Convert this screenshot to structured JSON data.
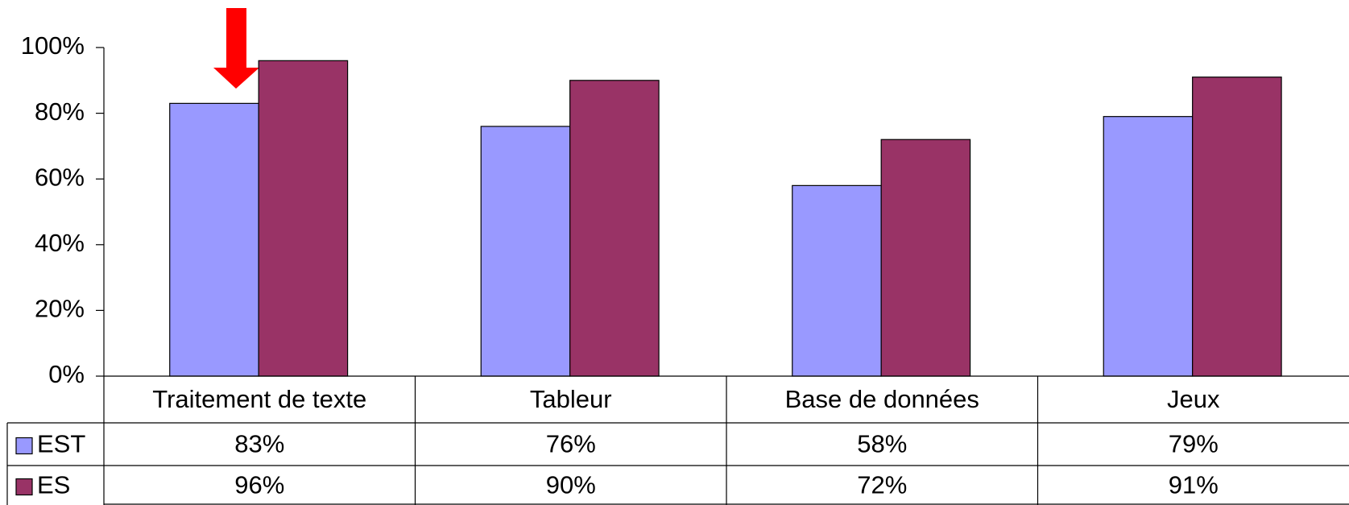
{
  "chart_data": {
    "type": "bar",
    "categories": [
      "Traitement de texte",
      "Tableur",
      "Base de données",
      "Jeux"
    ],
    "series": [
      {
        "name": "EST",
        "color": "#9999ff",
        "values": [
          83,
          76,
          58,
          79
        ],
        "value_labels": [
          "83%",
          "76%",
          "58%",
          "79%"
        ]
      },
      {
        "name": "ES",
        "color": "#993366",
        "values": [
          96,
          90,
          72,
          91
        ],
        "value_labels": [
          "96%",
          "90%",
          "72%",
          "91%"
        ]
      }
    ],
    "ylim": [
      0,
      100
    ],
    "yticks": [
      {
        "value": 0,
        "label": "0%"
      },
      {
        "value": 20,
        "label": "20%"
      },
      {
        "value": 40,
        "label": "40%"
      },
      {
        "value": 60,
        "label": "60%"
      },
      {
        "value": 80,
        "label": "80%"
      },
      {
        "value": 100,
        "label": "100%"
      }
    ]
  }
}
